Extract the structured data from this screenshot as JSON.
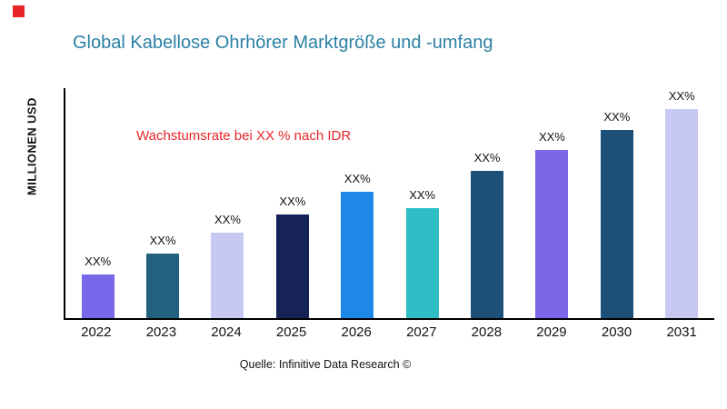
{
  "header": {
    "title": "Global Kabellose Ohrhörer Marktgröße und -umfang"
  },
  "colors": {
    "title_teal": "#2b80a3",
    "annotation_red": "#e8262a",
    "brand_red": "#e8262a",
    "axis_black": "#000000"
  },
  "chart_data": {
    "type": "bar",
    "title": "Global Kabellose Ohrhörer Marktgröße und -umfang",
    "xlabel": "",
    "ylabel": "MILLIONEN USD",
    "annotation": "Wachstumsrate bei XX % nach IDR",
    "source": "Quelle: Infinitive Data Research ©",
    "categories": [
      "2022",
      "2023",
      "2024",
      "2025",
      "2026",
      "2027",
      "2028",
      "2029",
      "2030",
      "2031"
    ],
    "values": [
      19,
      28,
      37,
      45,
      55,
      48,
      64,
      73,
      82,
      91
    ],
    "bar_labels": [
      "XX%",
      "XX%",
      "XX%",
      "XX%",
      "XX%",
      "XX%",
      "XX%",
      "XX%",
      "XX%",
      "XX%"
    ],
    "bar_colors": [
      "#7668e8",
      "#23617f",
      "#c8c9f2",
      "#152357",
      "#1e88e8",
      "#2fbec6",
      "#1d5078",
      "#7a68e8",
      "#1d5078",
      "#c8c9f2"
    ],
    "ylim": [
      0,
      100
    ],
    "grid": false,
    "legend": false
  }
}
